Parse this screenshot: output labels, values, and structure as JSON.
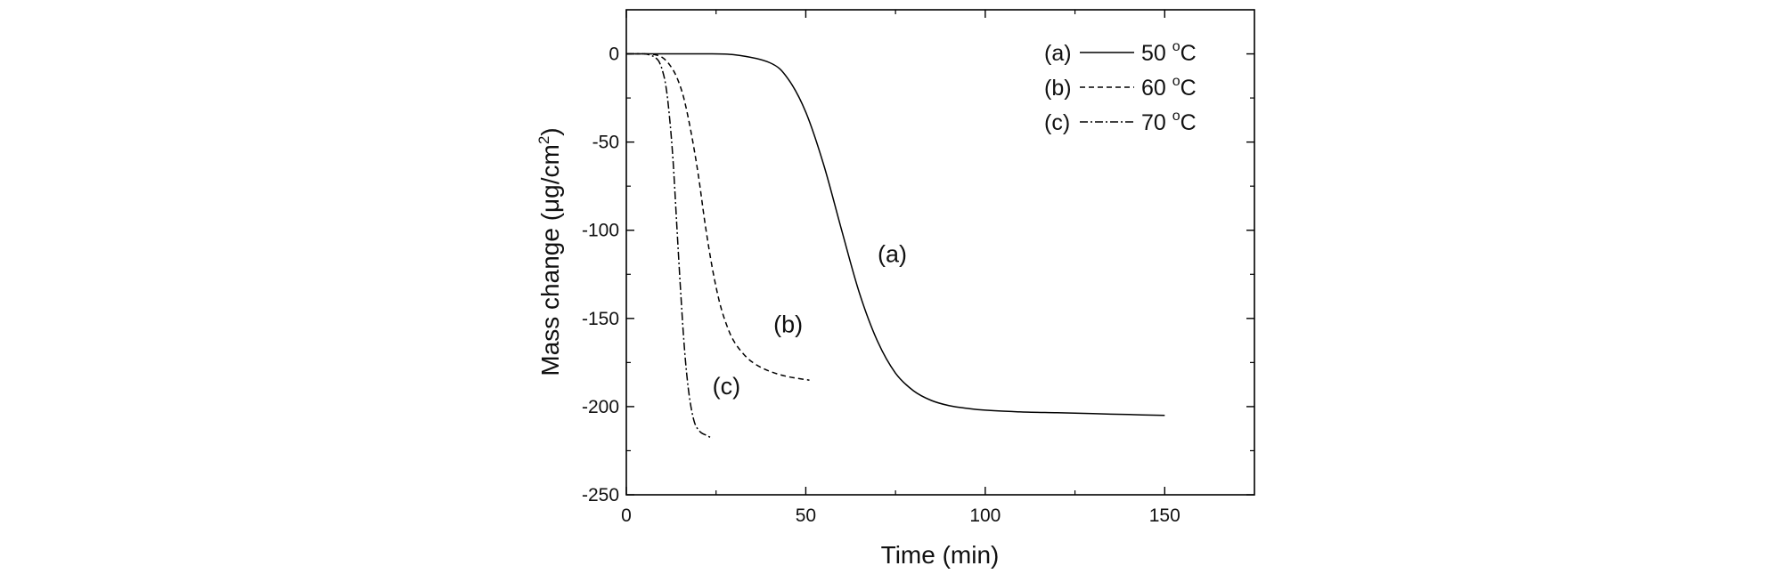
{
  "chart_data": {
    "type": "line",
    "title": "",
    "xlabel": "Time (min)",
    "ylabel": "Mass change (μg/cm²)",
    "ylabel_parts": {
      "before": "Mass change (",
      "unit": "μg/cm",
      "sup": "2",
      "after": ")"
    },
    "xlim": [
      0,
      175
    ],
    "ylim": [
      -250,
      25
    ],
    "x_ticks": [
      0,
      50,
      100,
      150
    ],
    "x_tick_labels": [
      "0",
      "50",
      "100",
      "150"
    ],
    "y_ticks": [
      0,
      -50,
      -100,
      -150,
      -200,
      -250
    ],
    "y_tick_labels": [
      "0",
      "-50",
      "-100",
      "-150",
      "-200",
      "-250"
    ],
    "grid": false,
    "legend_position": "top-right",
    "series": [
      {
        "name": "(a) 50 °C",
        "legend_id": "(a)",
        "legend_temp": "50 ",
        "legend_unit": "C",
        "legend_sup": "o",
        "curve_label": "(a)",
        "curve_label_at": [
          70,
          -118
        ],
        "style": "solid",
        "x": [
          0,
          10,
          20,
          30,
          40,
          45,
          50,
          55,
          60,
          65,
          70,
          75,
          80,
          85,
          90,
          95,
          100,
          110,
          120,
          130,
          140,
          150
        ],
        "y": [
          0,
          0,
          0,
          -0.5,
          -5,
          -14,
          -33,
          -63,
          -100,
          -136,
          -163,
          -181,
          -191,
          -196.5,
          -199.5,
          -201,
          -202,
          -203,
          -203.5,
          -204,
          -204.5,
          -205
        ]
      },
      {
        "name": "(b) 60 °C",
        "legend_id": "(b)",
        "legend_temp": "60 ",
        "legend_unit": "C",
        "legend_sup": "o",
        "curve_label": "(b)",
        "curve_label_at": [
          41,
          -158
        ],
        "style": "dashed",
        "x": [
          0,
          5,
          8,
          10,
          12,
          14,
          16,
          18,
          20,
          22,
          24,
          26,
          28,
          30,
          33,
          36,
          40,
          45,
          51
        ],
        "y": [
          0,
          0,
          -0.5,
          -2,
          -6,
          -13,
          -25,
          -44,
          -68,
          -97,
          -122,
          -141,
          -154,
          -163,
          -171,
          -176,
          -180,
          -183,
          -185
        ]
      },
      {
        "name": "(c) 70 °C",
        "legend_id": "(c)",
        "legend_temp": "70 ",
        "legend_unit": "C",
        "legend_sup": "o",
        "curve_label": "(c)",
        "curve_label_at": [
          24,
          -193
        ],
        "style": "dashdot",
        "x": [
          0,
          5,
          7,
          8,
          9,
          10,
          11,
          12,
          13,
          14,
          15,
          16,
          17,
          18,
          19,
          20,
          21,
          22,
          24
        ],
        "y": [
          0,
          0,
          -1,
          -2,
          -4,
          -9,
          -18,
          -35,
          -60,
          -95,
          -130,
          -162,
          -185,
          -200,
          -209,
          -213,
          -215,
          -216,
          -218
        ]
      }
    ]
  }
}
